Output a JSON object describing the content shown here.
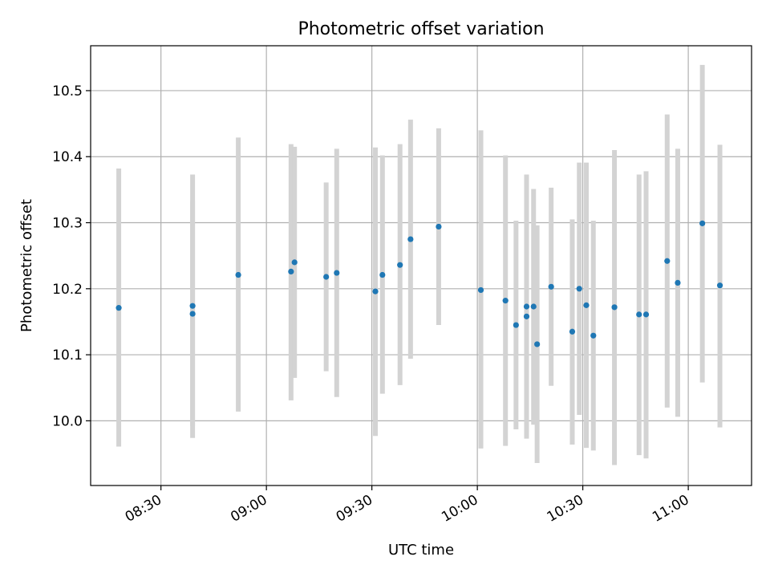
{
  "chart_data": {
    "type": "scatter",
    "title": "Photometric offset variation",
    "xlabel": "UTC time",
    "ylabel": "Photometric offset",
    "x_tick_labels": [
      "08:30",
      "09:00",
      "09:30",
      "10:00",
      "10:30",
      "11:00"
    ],
    "y_tick_labels": [
      "10.0",
      "10.1",
      "10.2",
      "10.3",
      "10.4",
      "10.5"
    ],
    "x_ticks": [
      "08:30",
      "09:00",
      "09:30",
      "10:00",
      "10:30",
      "11:00"
    ],
    "y_ticks": [
      10.0,
      10.1,
      10.2,
      10.3,
      10.4,
      10.5
    ],
    "xlim": [
      "08:10",
      "11:18"
    ],
    "ylim": [
      9.902,
      10.568
    ],
    "grid": true,
    "colors": {
      "point": "#1f77b4",
      "errorbar": "#d3d3d3",
      "grid": "#b0b0b0"
    },
    "points": [
      {
        "x": "08:18",
        "y": 10.171,
        "ylow": 9.961,
        "yhigh": 10.382
      },
      {
        "x": "08:39",
        "y": 10.162,
        "ylow": 9.992,
        "yhigh": 10.333
      },
      {
        "x": "08:39",
        "y": 10.174,
        "ylow": 9.974,
        "yhigh": 10.373
      },
      {
        "x": "08:52",
        "y": 10.221,
        "ylow": 10.014,
        "yhigh": 10.429
      },
      {
        "x": "09:07",
        "y": 10.226,
        "ylow": 10.031,
        "yhigh": 10.419
      },
      {
        "x": "09:08",
        "y": 10.24,
        "ylow": 10.065,
        "yhigh": 10.415
      },
      {
        "x": "09:17",
        "y": 10.218,
        "ylow": 10.075,
        "yhigh": 10.361
      },
      {
        "x": "09:20",
        "y": 10.224,
        "ylow": 10.036,
        "yhigh": 10.412
      },
      {
        "x": "09:31",
        "y": 10.196,
        "ylow": 9.977,
        "yhigh": 10.414
      },
      {
        "x": "09:33",
        "y": 10.221,
        "ylow": 10.041,
        "yhigh": 10.402
      },
      {
        "x": "09:38",
        "y": 10.236,
        "ylow": 10.054,
        "yhigh": 10.419
      },
      {
        "x": "09:41",
        "y": 10.275,
        "ylow": 10.094,
        "yhigh": 10.456
      },
      {
        "x": "09:49",
        "y": 10.294,
        "ylow": 10.145,
        "yhigh": 10.443
      },
      {
        "x": "10:01",
        "y": 10.198,
        "ylow": 9.958,
        "yhigh": 10.44
      },
      {
        "x": "10:08",
        "y": 10.182,
        "ylow": 9.962,
        "yhigh": 10.402
      },
      {
        "x": "10:11",
        "y": 10.145,
        "ylow": 9.987,
        "yhigh": 10.303
      },
      {
        "x": "10:14",
        "y": 10.173,
        "ylow": 9.973,
        "yhigh": 10.373
      },
      {
        "x": "10:14",
        "y": 10.158,
        "ylow": 9.984,
        "yhigh": 10.333
      },
      {
        "x": "10:16",
        "y": 10.173,
        "ylow": 9.994,
        "yhigh": 10.351
      },
      {
        "x": "10:17",
        "y": 10.116,
        "ylow": 9.936,
        "yhigh": 10.296
      },
      {
        "x": "10:21",
        "y": 10.203,
        "ylow": 10.053,
        "yhigh": 10.353
      },
      {
        "x": "10:27",
        "y": 10.135,
        "ylow": 9.964,
        "yhigh": 10.305
      },
      {
        "x": "10:29",
        "y": 10.2,
        "ylow": 10.009,
        "yhigh": 10.391
      },
      {
        "x": "10:31",
        "y": 10.175,
        "ylow": 9.959,
        "yhigh": 10.391
      },
      {
        "x": "10:33",
        "y": 10.129,
        "ylow": 9.955,
        "yhigh": 10.303
      },
      {
        "x": "10:39",
        "y": 10.172,
        "ylow": 9.933,
        "yhigh": 10.41
      },
      {
        "x": "10:46",
        "y": 10.161,
        "ylow": 9.948,
        "yhigh": 10.373
      },
      {
        "x": "10:48",
        "y": 10.161,
        "ylow": 9.943,
        "yhigh": 10.378
      },
      {
        "x": "10:54",
        "y": 10.242,
        "ylow": 10.02,
        "yhigh": 10.464
      },
      {
        "x": "10:57",
        "y": 10.209,
        "ylow": 10.006,
        "yhigh": 10.412
      },
      {
        "x": "11:04",
        "y": 10.299,
        "ylow": 10.058,
        "yhigh": 10.539
      },
      {
        "x": "11:09",
        "y": 10.205,
        "ylow": 9.99,
        "yhigh": 10.418
      }
    ]
  }
}
